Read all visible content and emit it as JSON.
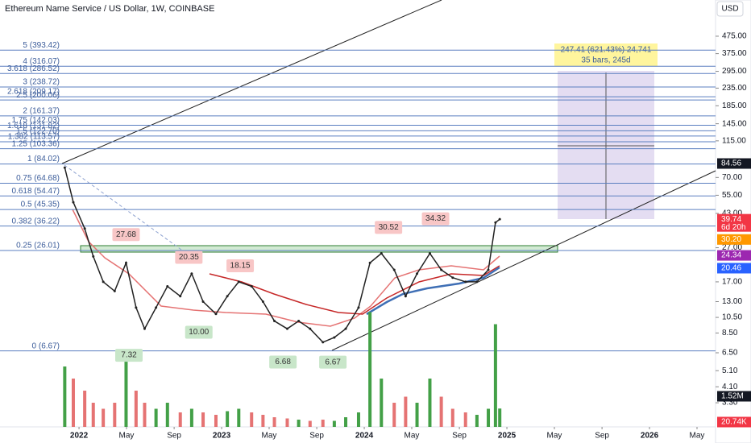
{
  "chart_data": {
    "type": "line",
    "title": "Ethereum Name Service / US Dollar, 1W, COINBASE",
    "currency": "USD",
    "log_scale": true,
    "color": "#222222",
    "x": [
      2021.9,
      2021.96,
      2022.04,
      2022.1,
      2022.17,
      2022.25,
      2022.33,
      2022.4,
      2022.46,
      2022.54,
      2022.62,
      2022.71,
      2022.79,
      2022.87,
      2022.96,
      2023.04,
      2023.12,
      2023.21,
      2023.29,
      2023.37,
      2023.46,
      2023.54,
      2023.62,
      2023.71,
      2023.79,
      2023.87,
      2023.96,
      2024.04,
      2024.12,
      2024.21,
      2024.29,
      2024.37,
      2024.46,
      2024.54,
      2024.62,
      2024.71,
      2024.79,
      2024.87,
      2024.92,
      2024.95
    ],
    "values": [
      80,
      50,
      35,
      24,
      17,
      15,
      22,
      12,
      9,
      12,
      16,
      14,
      19,
      13,
      11,
      14,
      17,
      16,
      13,
      10,
      9,
      10,
      9,
      7.5,
      8,
      9,
      12,
      22,
      25,
      20,
      14,
      19,
      25,
      20,
      18,
      17,
      17,
      20,
      38,
      39.74
    ],
    "volume": [
      5,
      4,
      3,
      2,
      1.5,
      2,
      5.5,
      3,
      2,
      1.5,
      2,
      1.2,
      1.5,
      1.2,
      1,
      1.3,
      1.5,
      1.2,
      1,
      0.8,
      0.7,
      0.6,
      0.5,
      0.6,
      0.5,
      0.8,
      1.2,
      9.5,
      4,
      2,
      2.5,
      2,
      4,
      2.5,
      1.5,
      1.2,
      1,
      1.5,
      8.5,
      1.52
    ],
    "y2lim": [
      0,
      10
    ],
    "xlim": [
      2021.446,
      2026.463
    ],
    "ylim": [
      2.38,
      776
    ],
    "xticks": [
      {
        "value": 2022,
        "label": "2022"
      },
      {
        "value": 2022.333,
        "label": "May"
      },
      {
        "value": 2022.667,
        "label": "Sep"
      },
      {
        "value": 2023,
        "label": "2023"
      },
      {
        "value": 2023.333,
        "label": "May"
      },
      {
        "value": 2023.667,
        "label": "Sep"
      },
      {
        "value": 2024,
        "label": "2024"
      },
      {
        "value": 2024.333,
        "label": "May"
      },
      {
        "value": 2024.667,
        "label": "Sep"
      },
      {
        "value": 2025,
        "label": "2025"
      },
      {
        "value": 2025.333,
        "label": "May"
      },
      {
        "value": 2025.667,
        "label": "Sep"
      },
      {
        "value": 2026,
        "label": "2026"
      },
      {
        "value": 2026.333,
        "label": "May"
      }
    ],
    "yticks": [
      {
        "value": 475,
        "label": "475.00"
      },
      {
        "value": 375,
        "label": "375.00"
      },
      {
        "value": 295,
        "label": "295.00"
      },
      {
        "value": 235,
        "label": "235.00"
      },
      {
        "value": 185,
        "label": "185.00"
      },
      {
        "value": 145,
        "label": "145.00"
      },
      {
        "value": 115,
        "label": "115.00"
      },
      {
        "value": 70,
        "label": "70.00"
      },
      {
        "value": 55,
        "label": "55.00"
      },
      {
        "value": 43,
        "label": "43.00"
      },
      {
        "value": 27,
        "label": "27.00"
      },
      {
        "value": 17,
        "label": "17.00"
      },
      {
        "value": 13,
        "label": "13.00"
      },
      {
        "value": 10.5,
        "label": "10.50"
      },
      {
        "value": 8.5,
        "label": "8.50"
      },
      {
        "value": 6.5,
        "label": "6.50"
      },
      {
        "value": 5.1,
        "label": "5.10"
      },
      {
        "value": 4.1,
        "label": "4.10"
      },
      {
        "value": 3.3,
        "label": "3.30"
      }
    ],
    "fib_levels": [
      {
        "label": "5 (393.42)",
        "value": 393.42
      },
      {
        "label": "4 (316.07)",
        "value": 316.07
      },
      {
        "label": "3.618 (286.52)",
        "value": 286.52
      },
      {
        "label": "3 (238.72)",
        "value": 238.72
      },
      {
        "label": "2.618 (209.17)",
        "value": 209.17
      },
      {
        "label": "2.5 (200.06)",
        "value": 200.06
      },
      {
        "label": "2 (161.37)",
        "value": 161.37
      },
      {
        "label": "1.75 (142.03)",
        "value": 142.03
      },
      {
        "label": "1.618 (131.82)",
        "value": 131.82
      },
      {
        "label": "1.5 (122.70)",
        "value": 122.7
      },
      {
        "label": "1.382 (113.57)",
        "value": 113.57
      },
      {
        "label": "1.25 (103.36)",
        "value": 103.36
      },
      {
        "label": "1 (84.02)",
        "value": 84.02
      },
      {
        "label": "0.75 (64.68)",
        "value": 64.68
      },
      {
        "label": "0.618 (54.47)",
        "value": 54.47
      },
      {
        "label": "0.5 (45.35)",
        "value": 45.35
      },
      {
        "label": "0.382 (36.22)",
        "value": 36.22
      },
      {
        "label": "0.25 (26.01)",
        "value": 26.01
      },
      {
        "label": "0 (6.67)",
        "value": 6.67
      }
    ],
    "highs": [
      {
        "label": "27.68",
        "value": 27.68,
        "x": 2022.33
      },
      {
        "label": "20.35",
        "value": 20.35,
        "x": 2022.77
      },
      {
        "label": "18.15",
        "value": 18.15,
        "x": 2023.13
      },
      {
        "label": "30.52",
        "value": 30.52,
        "x": 2024.17
      },
      {
        "label": "34.32",
        "value": 34.32,
        "x": 2024.5
      }
    ],
    "lows": [
      {
        "label": "7.32",
        "value": 7.32,
        "x": 2022.35
      },
      {
        "label": "10.00",
        "value": 10,
        "x": 2022.84
      },
      {
        "label": "6.68",
        "value": 6.68,
        "x": 2023.43
      },
      {
        "label": "6.67",
        "value": 6.67,
        "x": 2023.78
      }
    ],
    "measure": [
      "247.41 (621.43%) 24,741",
      "35 bars, 245d"
    ],
    "badges": [
      {
        "label": "84.56",
        "value": 84.56,
        "color": "#131722"
      },
      {
        "label": "39.74",
        "sub": "6d 20h",
        "value": 39.74,
        "color": "#f23645"
      },
      {
        "label": "30.20",
        "value": 30.2,
        "color": "#ff9800"
      },
      {
        "label": "24.34",
        "value": 24.34,
        "color": "#9c27b0"
      },
      {
        "label": "20.46",
        "value": 20.46,
        "color": "#2962ff"
      }
    ],
    "volume_badges": [
      {
        "label": "1.52M",
        "color": "#131722"
      },
      {
        "label": "20.74K",
        "color": "#f23645"
      }
    ]
  }
}
